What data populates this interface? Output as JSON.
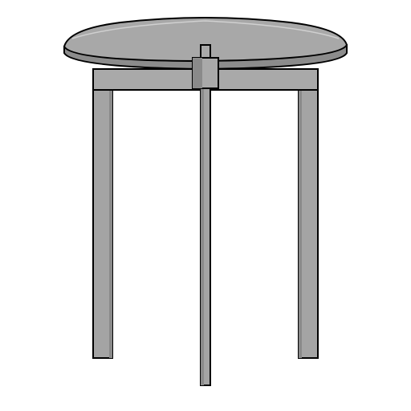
{
  "scene": {
    "subject": "round-top-stool-render",
    "background_color": "#ffffff",
    "colors": {
      "top_surface": "#a8a8a8",
      "top_edge": "#8c8c8c",
      "leg_front": "#a4a4a4",
      "leg_shadow": "#8a8a8a",
      "rail": "#a9a9a9",
      "outline": "#000000",
      "highlight": "#d0d0d0"
    }
  }
}
